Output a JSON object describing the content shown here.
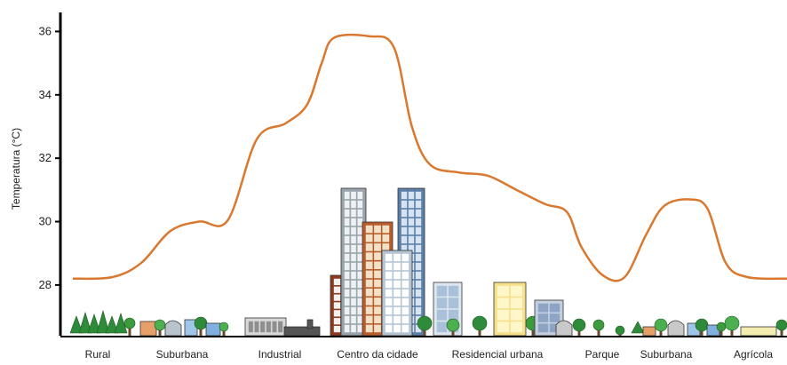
{
  "chart_data": {
    "type": "line",
    "title": "",
    "xlabel": "",
    "ylabel": "Temperatura (°C)",
    "ylim": [
      26.4,
      36.6
    ],
    "yticks": [
      28,
      30,
      32,
      34,
      36
    ],
    "categories": [
      "Rural",
      "Suburbana",
      "Industrial",
      "Centro da cidade",
      "Residencial urbana",
      "Parque",
      "Suburbana",
      "Agrícola"
    ],
    "grid": false,
    "line_color": "#d9782e",
    "series": [
      {
        "name": "",
        "points": [
          {
            "x": 0.0,
            "y": 28.2
          },
          {
            "x": 0.55,
            "y": 28.25
          },
          {
            "x": 0.95,
            "y": 28.7
          },
          {
            "x": 1.35,
            "y": 29.7
          },
          {
            "x": 1.75,
            "y": 30.0
          },
          {
            "x": 2.15,
            "y": 30.05
          },
          {
            "x": 2.55,
            "y": 32.6
          },
          {
            "x": 2.95,
            "y": 33.1
          },
          {
            "x": 3.25,
            "y": 33.7
          },
          {
            "x": 3.45,
            "y": 35.0
          },
          {
            "x": 3.62,
            "y": 35.8
          },
          {
            "x": 4.1,
            "y": 35.85
          },
          {
            "x": 4.45,
            "y": 35.5
          },
          {
            "x": 4.7,
            "y": 33.0
          },
          {
            "x": 4.95,
            "y": 31.8
          },
          {
            "x": 5.35,
            "y": 31.55
          },
          {
            "x": 5.75,
            "y": 31.45
          },
          {
            "x": 6.15,
            "y": 31.0
          },
          {
            "x": 6.55,
            "y": 30.55
          },
          {
            "x": 6.85,
            "y": 30.3
          },
          {
            "x": 7.05,
            "y": 29.2
          },
          {
            "x": 7.35,
            "y": 28.3
          },
          {
            "x": 7.65,
            "y": 28.25
          },
          {
            "x": 7.95,
            "y": 29.6
          },
          {
            "x": 8.2,
            "y": 30.5
          },
          {
            "x": 8.55,
            "y": 30.7
          },
          {
            "x": 8.8,
            "y": 30.4
          },
          {
            "x": 9.05,
            "y": 28.7
          },
          {
            "x": 9.35,
            "y": 28.25
          },
          {
            "x": 9.9,
            "y": 28.2
          }
        ]
      }
    ]
  }
}
